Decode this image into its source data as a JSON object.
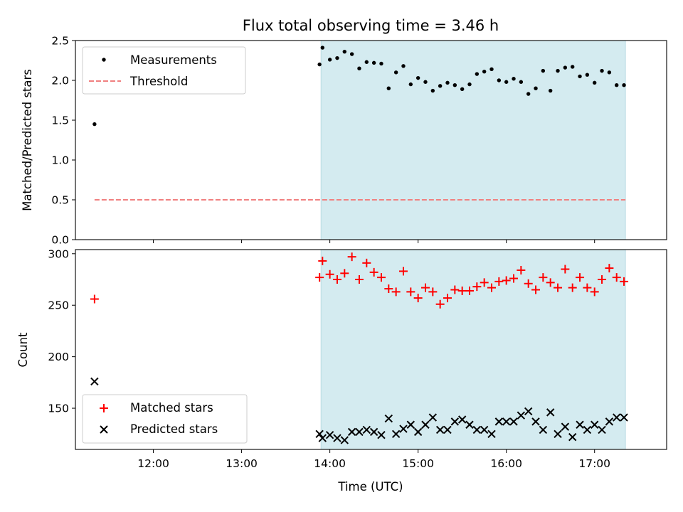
{
  "chart_data": [
    {
      "type": "scatter",
      "title": "Flux total observing time = 3.46 h",
      "xlabel": "",
      "ylabel": "Matched/Predicted stars",
      "xlim": [
        "11:07",
        "17:49"
      ],
      "ylim": [
        0,
        2.5
      ],
      "yticks": [
        "0.0",
        "0.5",
        "1.0",
        "1.5",
        "2.0",
        "2.5"
      ],
      "shaded_region": {
        "start": "13:54",
        "end": "17:21",
        "color": "#d4ebf0"
      },
      "legend_position": "upper left",
      "series": [
        {
          "name": "Measurements",
          "marker": "dot",
          "color": "#000000",
          "x": [
            "11:20",
            "13:53",
            "13:55",
            "14:00",
            "14:05",
            "14:10",
            "14:15",
            "14:20",
            "14:25",
            "14:30",
            "14:35",
            "14:40",
            "14:45",
            "14:50",
            "14:55",
            "15:00",
            "15:05",
            "15:10",
            "15:15",
            "15:20",
            "15:25",
            "15:30",
            "15:35",
            "15:40",
            "15:45",
            "15:50",
            "15:55",
            "16:00",
            "16:05",
            "16:10",
            "16:15",
            "16:20",
            "16:25",
            "16:30",
            "16:35",
            "16:40",
            "16:45",
            "16:50",
            "16:55",
            "17:00",
            "17:05",
            "17:10",
            "17:15",
            "17:20"
          ],
          "y": [
            1.45,
            2.2,
            2.41,
            2.26,
            2.28,
            2.36,
            2.33,
            2.15,
            2.23,
            2.22,
            2.21,
            1.9,
            2.1,
            2.18,
            1.95,
            2.03,
            1.98,
            1.87,
            1.93,
            1.97,
            1.94,
            1.89,
            1.95,
            2.08,
            2.11,
            2.14,
            2.0,
            1.98,
            2.02,
            1.98,
            1.83,
            1.9,
            2.12,
            1.87,
            2.12,
            2.16,
            2.17,
            2.05,
            2.07,
            1.97,
            2.12,
            2.1,
            1.94,
            1.94
          ]
        },
        {
          "name": "Threshold",
          "style": "dashed",
          "color": "#f08080",
          "x": [
            "11:20",
            "17:21"
          ],
          "y": [
            0.5,
            0.5
          ]
        }
      ]
    },
    {
      "type": "scatter",
      "title": "",
      "xlabel": "Time (UTC)",
      "ylabel": "Count",
      "xlim": [
        "11:07",
        "17:49"
      ],
      "ylim": [
        110,
        304
      ],
      "yticks": [
        "150",
        "200",
        "250",
        "300"
      ],
      "xticks": [
        "12:00",
        "13:00",
        "14:00",
        "15:00",
        "16:00",
        "17:00"
      ],
      "shaded_region": {
        "start": "13:54",
        "end": "17:21",
        "color": "#d4ebf0"
      },
      "legend_position": "lower left",
      "series": [
        {
          "name": "Matched stars",
          "marker": "plus",
          "color": "#ff0000",
          "x": [
            "11:20",
            "13:53",
            "13:55",
            "14:00",
            "14:05",
            "14:10",
            "14:15",
            "14:20",
            "14:25",
            "14:30",
            "14:35",
            "14:40",
            "14:45",
            "14:50",
            "14:55",
            "15:00",
            "15:05",
            "15:10",
            "15:15",
            "15:20",
            "15:25",
            "15:30",
            "15:35",
            "15:40",
            "15:45",
            "15:50",
            "15:55",
            "16:00",
            "16:05",
            "16:10",
            "16:15",
            "16:20",
            "16:25",
            "16:30",
            "16:35",
            "16:40",
            "16:45",
            "16:50",
            "16:55",
            "17:00",
            "17:05",
            "17:10",
            "17:15",
            "17:20"
          ],
          "y": [
            256,
            277,
            293,
            280,
            275,
            281,
            297,
            275,
            291,
            282,
            277,
            266,
            263,
            283,
            263,
            257,
            267,
            263,
            251,
            257,
            265,
            264,
            264,
            268,
            272,
            267,
            273,
            274,
            276,
            284,
            271,
            265,
            277,
            272,
            267,
            285,
            267,
            277,
            267,
            263,
            275,
            286,
            277,
            273
          ]
        },
        {
          "name": "Predicted stars",
          "marker": "x",
          "color": "#000000",
          "x": [
            "11:20",
            "13:53",
            "13:55",
            "14:00",
            "14:05",
            "14:10",
            "14:15",
            "14:20",
            "14:25",
            "14:30",
            "14:35",
            "14:40",
            "14:45",
            "14:50",
            "14:55",
            "15:00",
            "15:05",
            "15:10",
            "15:15",
            "15:20",
            "15:25",
            "15:30",
            "15:35",
            "15:40",
            "15:45",
            "15:50",
            "15:55",
            "16:00",
            "16:05",
            "16:10",
            "16:15",
            "16:20",
            "16:25",
            "16:30",
            "16:35",
            "16:40",
            "16:45",
            "16:50",
            "16:55",
            "17:00",
            "17:05",
            "17:10",
            "17:15",
            "17:20"
          ],
          "y": [
            176,
            125,
            121,
            124,
            121,
            119,
            127,
            127,
            129,
            127,
            124,
            140,
            125,
            130,
            134,
            127,
            134,
            141,
            129,
            129,
            137,
            139,
            134,
            129,
            129,
            125,
            137,
            137,
            137,
            143,
            147,
            137,
            129,
            146,
            125,
            132,
            122,
            134,
            129,
            134,
            129,
            137,
            141,
            141
          ]
        }
      ]
    }
  ]
}
